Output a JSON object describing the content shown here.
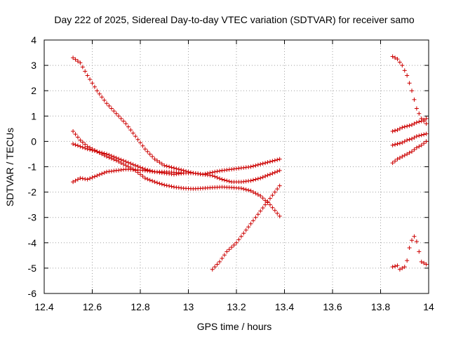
{
  "chart_data": {
    "type": "scatter",
    "title": "Day 222 of 2025, Sidereal Day-to-day VTEC variation (SDTVAR) for receiver samo",
    "xlabel": "GPS time / hours",
    "ylabel": "SDTVAR / TECUs",
    "xlim": [
      12.4,
      14.0
    ],
    "ylim": [
      -6,
      4
    ],
    "xticks": [
      12.4,
      12.6,
      12.8,
      13.0,
      13.2,
      13.4,
      13.6,
      13.8,
      14.0
    ],
    "xtick_labels": [
      "12.4",
      "12.6",
      "12.8",
      "13",
      "13.2",
      "13.4",
      "13.6",
      "13.8",
      "14"
    ],
    "yticks": [
      -6,
      -5,
      -4,
      -3,
      -2,
      -1,
      0,
      1,
      2,
      3,
      4
    ],
    "ytick_labels": [
      "-6",
      "-5",
      "-4",
      "-3",
      "-2",
      "-1",
      "0",
      "1",
      "2",
      "3",
      "4"
    ],
    "grid": true,
    "marker": "+",
    "color": "#cc0000",
    "series": [
      {
        "x": [
          12.52,
          12.55,
          12.58,
          12.62,
          12.66,
          12.7,
          12.74,
          12.78,
          12.82,
          12.86,
          12.9,
          12.94,
          12.98,
          13.02,
          13.06,
          13.1,
          13.14,
          13.18,
          13.22,
          13.26,
          13.3,
          13.34,
          13.38
        ],
        "y": [
          3.3,
          3.1,
          2.6,
          2.0,
          1.5,
          1.1,
          0.7,
          0.2,
          -0.3,
          -0.7,
          -0.95,
          -1.05,
          -1.15,
          -1.25,
          -1.3,
          -1.35,
          -1.5,
          -1.6,
          -1.6,
          -1.55,
          -1.45,
          -1.3,
          -1.15
        ]
      },
      {
        "x": [
          12.52,
          12.55,
          12.58,
          12.62,
          12.66,
          12.7,
          12.74,
          12.78,
          12.82,
          12.86,
          12.9,
          12.94,
          12.98,
          13.02,
          13.06,
          13.1,
          13.14,
          13.18,
          13.22,
          13.26,
          13.3,
          13.34,
          13.38
        ],
        "y": [
          0.4,
          0.05,
          -0.2,
          -0.4,
          -0.6,
          -0.75,
          -0.95,
          -1.15,
          -1.45,
          -1.6,
          -1.72,
          -1.8,
          -1.85,
          -1.87,
          -1.85,
          -1.82,
          -1.8,
          -1.82,
          -1.85,
          -1.95,
          -2.15,
          -2.5,
          -2.95
        ]
      },
      {
        "x": [
          12.52,
          12.55,
          12.58,
          12.62,
          12.66,
          12.7,
          12.74,
          12.78,
          12.82,
          12.86,
          12.9,
          12.94,
          12.98,
          13.02,
          13.06,
          13.1,
          13.14,
          13.18,
          13.22,
          13.26,
          13.3,
          13.34,
          13.38
        ],
        "y": [
          -0.1,
          -0.2,
          -0.3,
          -0.4,
          -0.5,
          -0.65,
          -0.8,
          -0.95,
          -1.1,
          -1.2,
          -1.25,
          -1.3,
          -1.25,
          -1.25,
          -1.3,
          -1.22,
          -1.15,
          -1.1,
          -1.05,
          -1.0,
          -0.9,
          -0.8,
          -0.7
        ]
      },
      {
        "x": [
          12.52,
          12.55,
          12.58,
          12.62,
          12.66,
          12.7,
          12.74,
          12.78,
          12.82,
          12.86,
          12.9,
          12.94,
          12.98
        ],
        "y": [
          -1.6,
          -1.45,
          -1.5,
          -1.35,
          -1.2,
          -1.15,
          -1.1,
          -1.12,
          -1.15,
          -1.2,
          -1.2,
          -1.22,
          -1.25
        ]
      },
      {
        "x": [
          13.1,
          13.13,
          13.16,
          13.2,
          13.24,
          13.28,
          13.32,
          13.36,
          13.38
        ],
        "y": [
          -5.05,
          -4.75,
          -4.35,
          -4.0,
          -3.5,
          -3.0,
          -2.5,
          -2.0,
          -1.75
        ]
      },
      {
        "x": [
          13.85,
          13.87,
          13.89,
          13.91,
          13.93,
          13.95,
          13.97,
          13.99
        ],
        "y": [
          3.35,
          3.25,
          3.0,
          2.6,
          2.0,
          1.3,
          0.9,
          0.7
        ]
      },
      {
        "x": [
          13.85,
          13.87,
          13.89,
          13.91,
          13.93,
          13.95,
          13.97,
          13.99
        ],
        "y": [
          0.4,
          0.45,
          0.55,
          0.6,
          0.65,
          0.75,
          0.8,
          0.9
        ]
      },
      {
        "x": [
          13.85,
          13.87,
          13.89,
          13.91,
          13.93,
          13.95,
          13.97,
          13.99
        ],
        "y": [
          -0.15,
          -0.1,
          -0.05,
          0.05,
          0.1,
          0.2,
          0.25,
          0.3
        ]
      },
      {
        "x": [
          13.85,
          13.87,
          13.89,
          13.91,
          13.93,
          13.95,
          13.97,
          13.99
        ],
        "y": [
          -0.85,
          -0.7,
          -0.6,
          -0.5,
          -0.4,
          -0.25,
          -0.15,
          0.0
        ]
      },
      {
        "x": [
          13.85,
          13.87,
          13.88,
          13.9,
          13.91,
          13.92,
          13.93,
          13.94,
          13.95,
          13.96,
          13.97,
          13.98,
          13.99
        ],
        "y": [
          -4.95,
          -4.9,
          -5.05,
          -4.95,
          -4.7,
          -4.2,
          -3.9,
          -3.75,
          -3.95,
          -4.35,
          -4.75,
          -4.8,
          -4.85
        ]
      }
    ]
  }
}
